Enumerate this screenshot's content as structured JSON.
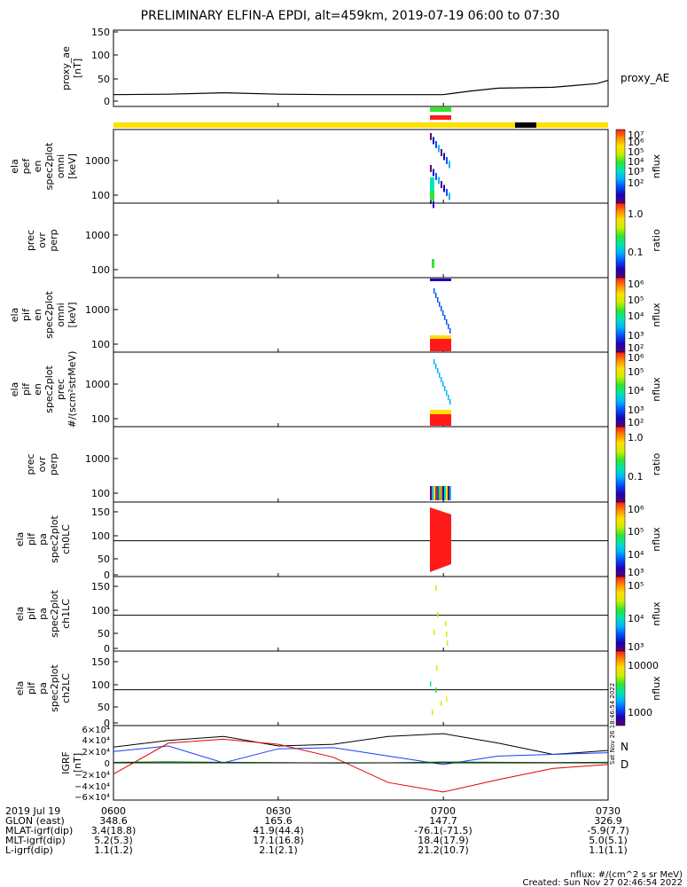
{
  "title": "PRELIMINARY ELFIN-A EPDI, alt=459km, 2019-07-19 06:00 to 07:30",
  "colors": {
    "proxy_ae_line": "#000000",
    "bar_yellow": "#ffe000",
    "bar_green": "#2ee62e",
    "bar_red": "#ff1a1a",
    "bar_black": "#000000",
    "bfield_x": "#000000",
    "bfield_y": "#1a3cff",
    "bfield_z": "#e00000",
    "bfield_g": "#1a9a1a"
  },
  "colorbar_stops": [
    "#5a006e",
    "#1f00b4",
    "#0050ff",
    "#00b4ff",
    "#00e6b4",
    "#2ee62e",
    "#c8f000",
    "#ffe000",
    "#ff8c00",
    "#ff1a1a"
  ],
  "panels": [
    {
      "id": "proxy_ae",
      "label_lines": [
        "proxy_ae",
        "[nT]"
      ],
      "yticks": [
        "150",
        "100",
        "50",
        "0"
      ],
      "right_label": "proxy_AE"
    },
    {
      "id": "pef_en",
      "label_lines": [
        "ela",
        "pef",
        "en",
        "spec2plot",
        "omni",
        "[keV]"
      ],
      "yticks": [
        "1000",
        "100"
      ],
      "cb_ticks": [
        "10⁷",
        "10⁶",
        "10⁵",
        "10⁴",
        "10³",
        "10²"
      ],
      "cb_title": "nflux"
    },
    {
      "id": "prec_ovr_perp_1",
      "label_lines": [
        "prec",
        "ovr",
        "perp"
      ],
      "yticks": [
        "1000",
        "100"
      ],
      "cb_ticks": [
        "1.0",
        "0.1"
      ],
      "cb_title": "ratio"
    },
    {
      "id": "pif_en",
      "label_lines": [
        "ela",
        "pif",
        "en",
        "spec2plot",
        "omni",
        "[keV]"
      ],
      "yticks": [
        "1000",
        "100"
      ],
      "cb_ticks": [
        "10⁶",
        "10⁵",
        "10⁴",
        "10³",
        "10²"
      ],
      "cb_title": "nflux"
    },
    {
      "id": "pif_prec",
      "label_lines": [
        "ela",
        "pif",
        "en",
        "spec2plot",
        "prec",
        "#/(scm²strMeV)"
      ],
      "yticks": [
        "1000",
        "100"
      ],
      "cb_ticks": [
        "10⁶",
        "10⁵",
        "10⁴",
        "10³",
        "10²"
      ],
      "cb_title": "nflux"
    },
    {
      "id": "prec_ovr_perp_2",
      "label_lines": [
        "prec",
        "ovr",
        "perp"
      ],
      "yticks": [
        "1000",
        "100"
      ],
      "cb_ticks": [
        "1.0",
        "0.1"
      ],
      "cb_title": "ratio"
    },
    {
      "id": "pa_ch0",
      "label_lines": [
        "ela",
        "pif",
        "pa",
        "spec2plot",
        "ch0LC"
      ],
      "yticks": [
        "150",
        "100",
        "50",
        "0"
      ],
      "cb_ticks": [
        "10⁶",
        "10⁵",
        "10⁴",
        "10³"
      ],
      "cb_title": "nflux"
    },
    {
      "id": "pa_ch1",
      "label_lines": [
        "ela",
        "pif",
        "pa",
        "spec2plot",
        "ch1LC"
      ],
      "yticks": [
        "150",
        "100",
        "50",
        "0"
      ],
      "cb_ticks": [
        "10⁵",
        "10⁴",
        "10³"
      ],
      "cb_title": "nflux"
    },
    {
      "id": "pa_ch2",
      "label_lines": [
        "ela",
        "pif",
        "pa",
        "spec2plot",
        "ch2LC"
      ],
      "yticks": [
        "150",
        "100",
        "50",
        "0"
      ],
      "cb_ticks": [
        "10000",
        "1000"
      ],
      "cb_title": "nflux"
    },
    {
      "id": "igrf",
      "label_lines": [
        "IGRF",
        "[nT]"
      ],
      "yticks": [
        "6×10⁴",
        "4×10⁴",
        "2×10⁴",
        "0",
        "−2×10⁴",
        "−4×10⁴",
        "−6×10⁴"
      ],
      "right_labels": [
        "N",
        "D"
      ]
    }
  ],
  "ephemeris": {
    "rows": [
      {
        "label": "2019 Jul 19",
        "values": [
          "0600",
          "0630",
          "0700",
          "0730"
        ]
      },
      {
        "label": "GLON (east)",
        "values": [
          "348.6",
          "165.6",
          "147.7",
          "326.9"
        ]
      },
      {
        "label": "MLAT-igrf(dip)",
        "values": [
          "3.4(18.8)",
          "41.9(44.4)",
          "-76.1(-71.5)",
          "-5.9(7.7)"
        ]
      },
      {
        "label": "MLT-igrf(dip)",
        "values": [
          "5.2(5.3)",
          "17.1(16.8)",
          "18.4(17.9)",
          "5.0(5.1)"
        ]
      },
      {
        "label": "L-igrf(dip)",
        "values": [
          "1.1(1.2)",
          "2.1(2.1)",
          "21.2(10.7)",
          "1.1(1.1)"
        ]
      }
    ]
  },
  "footer": {
    "units": "nflux: #/(cm^2 s sr MeV)",
    "created": "Created: Sun Nov 27 02:46:54 2022",
    "side_stamp": "Sat Nov 26 18:46:54 2022"
  },
  "chart_data": {
    "type": "line",
    "title": "PRELIMINARY ELFIN-A EPDI, alt=459km, 2019-07-19 06:00 to 07:30",
    "x": [
      "06:00",
      "06:15",
      "06:30",
      "06:45",
      "07:00",
      "07:15",
      "07:30"
    ],
    "xlim": [
      "2019-07-19 06:00",
      "2019-07-19 07:30"
    ],
    "series": [
      {
        "name": "proxy_AE",
        "x": [
          "06:00",
          "06:10",
          "06:20",
          "06:30",
          "06:40",
          "06:50",
          "07:00",
          "07:05",
          "07:10",
          "07:20",
          "07:28",
          "07:30"
        ],
        "values": [
          14,
          15,
          18,
          15,
          14,
          14,
          14,
          22,
          28,
          30,
          38,
          45
        ]
      }
    ],
    "ylabel": "proxy_ae [nT]",
    "ylim": [
      0,
      150
    ],
    "grid": false,
    "igrf": {
      "ylim": [
        -60000,
        60000
      ],
      "x": [
        "06:00",
        "06:10",
        "06:20",
        "06:30",
        "06:40",
        "06:50",
        "07:00",
        "07:10",
        "07:20",
        "07:30"
      ],
      "series": [
        {
          "name": "x",
          "values": [
            28000,
            40000,
            47000,
            30000,
            33000,
            47000,
            52000,
            35000,
            15000,
            22000
          ]
        },
        {
          "name": "y",
          "values": [
            20000,
            30000,
            0,
            25000,
            27000,
            12000,
            -3000,
            12000,
            15000,
            18000
          ]
        },
        {
          "name": "z",
          "values": [
            -20000,
            35000,
            42000,
            33000,
            10000,
            -35000,
            -52000,
            -30000,
            -10000,
            -3000
          ]
        },
        {
          "name": "g",
          "values": [
            1000,
            2000,
            1000,
            500,
            -500,
            0,
            1500,
            1000,
            500,
            1000
          ]
        }
      ]
    }
  }
}
